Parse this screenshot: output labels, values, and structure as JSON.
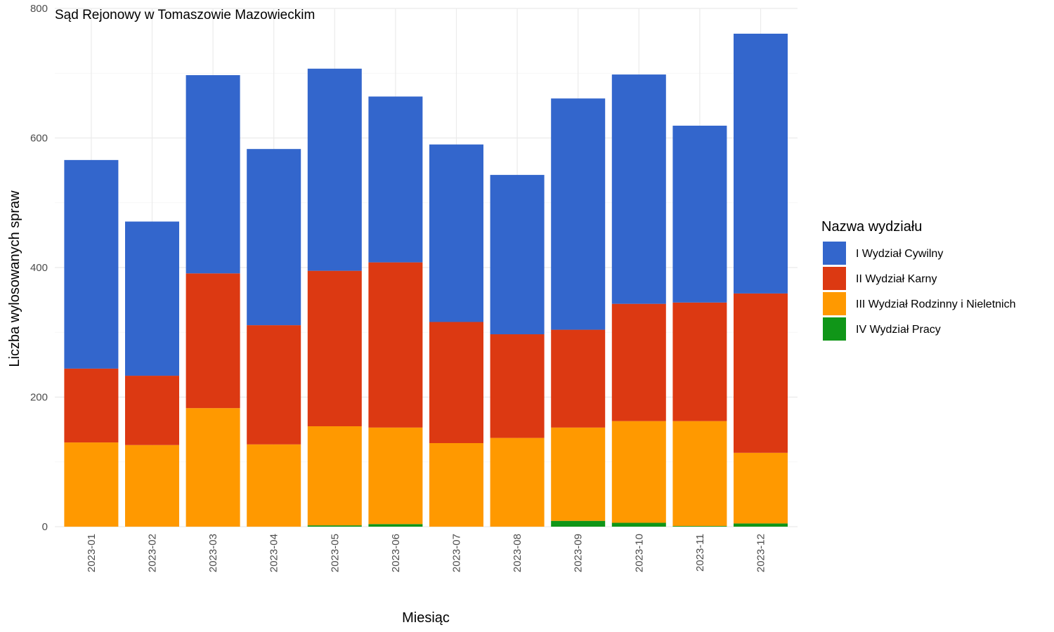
{
  "chart_data": {
    "type": "bar",
    "stacked": true,
    "title": "Sąd Rejonowy w Tomaszowie Mazowieckim",
    "xlabel": "Miesiąc",
    "ylabel": "Liczba wylosowanych spraw",
    "ylim": [
      0,
      800
    ],
    "yticks": [
      "0",
      "200",
      "400",
      "600",
      "800"
    ],
    "grid": true,
    "legend_title": "Nazwa wydziału",
    "legend_position": "right",
    "categories": [
      "2023-01",
      "2023-02",
      "2023-03",
      "2023-04",
      "2023-05",
      "2023-06",
      "2023-07",
      "2023-08",
      "2023-09",
      "2023-10",
      "2023-11",
      "2023-12"
    ],
    "series": [
      {
        "name": "I Wydział Cywilny",
        "color": "#3366cc",
        "values": [
          322,
          238,
          306,
          272,
          312,
          256,
          274,
          246,
          357,
          354,
          273,
          401
        ]
      },
      {
        "name": "II Wydział Karny",
        "color": "#dc3912",
        "values": [
          114,
          107,
          208,
          184,
          240,
          255,
          187,
          160,
          151,
          181,
          183,
          246
        ]
      },
      {
        "name": "III Wydział Rodzinny i Nieletnich",
        "color": "#ff9900",
        "values": [
          130,
          126,
          183,
          127,
          153,
          149,
          129,
          137,
          144,
          157,
          162,
          109
        ]
      },
      {
        "name": "IV Wydział Pracy",
        "color": "#109618",
        "values": [
          0,
          0,
          0,
          0,
          2,
          4,
          0,
          0,
          9,
          6,
          1,
          5
        ]
      }
    ]
  }
}
